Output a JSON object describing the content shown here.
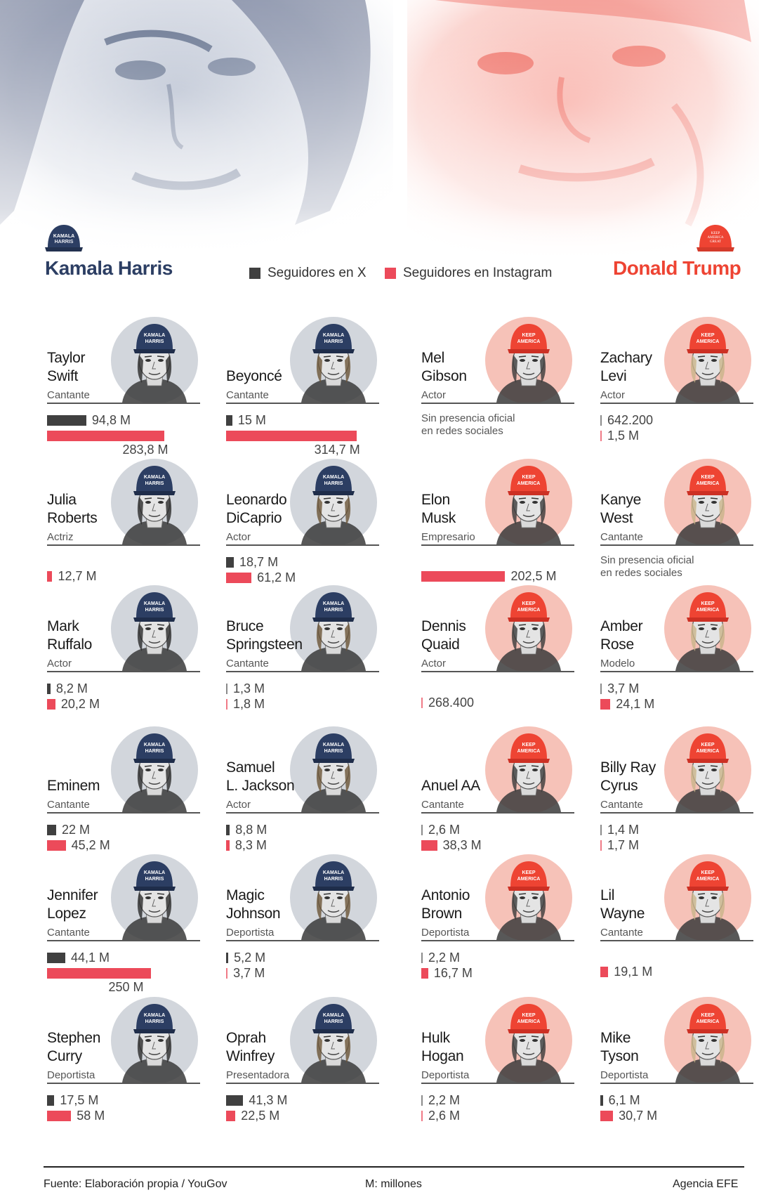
{
  "legend": {
    "x_label": "Seguidores en X",
    "ig_label": "Seguidores en Instagram"
  },
  "candidates": {
    "harris": {
      "name": "Kamala Harris",
      "color": "#2c3e63",
      "cap_text_1": "KAMALA",
      "cap_text_2": "HARRIS"
    },
    "trump": {
      "name": "Donald Trump",
      "color": "#ee4433",
      "cap_text_1": "KEEP",
      "cap_text_2": "AMERICA",
      "cap_text_3": "GREAT"
    }
  },
  "colors": {
    "x": "#404040",
    "instagram": "#ec4a5a",
    "harris_bg": "#d2d6dc",
    "trump_bg": "#f6c2b8"
  },
  "chart_data": {
    "type": "bar",
    "unit": "M: millones",
    "series_names": [
      "Seguidores en X",
      "Seguidores en Instagram"
    ],
    "people": [
      {
        "name": [
          "Taylor",
          "Swift"
        ],
        "role": "Cantante",
        "side": "harris",
        "x": 94.8,
        "x_label": "94,8 M",
        "ig": 283.8,
        "ig_label": "283,8 M"
      },
      {
        "name": [
          "Beyoncé"
        ],
        "role": "Cantante",
        "side": "harris",
        "x": 15,
        "x_label": "15 M",
        "ig": 314.7,
        "ig_label": "314,7 M"
      },
      {
        "name": [
          "Mel",
          "Gibson"
        ],
        "role": "Actor",
        "side": "trump",
        "note": [
          "Sin presencia oficial",
          "en redes sociales"
        ]
      },
      {
        "name": [
          "Zachary",
          "Levi"
        ],
        "role": "Actor",
        "side": "trump",
        "x": 0.6422,
        "x_label": "642.200",
        "ig": 1.5,
        "ig_label": "1,5 M"
      },
      {
        "name": [
          "Julia",
          "Roberts"
        ],
        "role": "Actriz",
        "side": "harris",
        "ig": 12.7,
        "ig_label": "12,7 M"
      },
      {
        "name": [
          "Leonardo",
          "DiCaprio"
        ],
        "role": "Actor",
        "side": "harris",
        "x": 18.7,
        "x_label": "18,7 M",
        "ig": 61.2,
        "ig_label": "61,2 M"
      },
      {
        "name": [
          "Elon",
          "Musk"
        ],
        "role": "Empresario",
        "side": "trump",
        "ig": 202.5,
        "ig_label": "202,5 M"
      },
      {
        "name": [
          "Kanye",
          "West"
        ],
        "role": "Cantante",
        "side": "trump",
        "note": [
          "Sin presencia oficial",
          "en redes sociales"
        ]
      },
      {
        "name": [
          "Mark",
          "Ruffalo"
        ],
        "role": "Actor",
        "side": "harris",
        "x": 8.2,
        "x_label": "8,2 M",
        "ig": 20.2,
        "ig_label": "20,2 M"
      },
      {
        "name": [
          "Bruce",
          "Springsteen"
        ],
        "role": "Cantante",
        "side": "harris",
        "x": 1.3,
        "x_label": "1,3 M",
        "ig": 1.8,
        "ig_label": "1,8 M"
      },
      {
        "name": [
          "Dennis",
          "Quaid"
        ],
        "role": "Actor",
        "side": "trump",
        "ig": 0.2684,
        "ig_label": "268.400"
      },
      {
        "name": [
          "Amber",
          "Rose"
        ],
        "role": "Modelo",
        "side": "trump",
        "x": 3.7,
        "x_label": "3,7 M",
        "ig": 24.1,
        "ig_label": "24,1 M"
      },
      {
        "name": [
          "Eminem"
        ],
        "role": "Cantante",
        "side": "harris",
        "x": 22,
        "x_label": "22 M",
        "ig": 45.2,
        "ig_label": "45,2 M"
      },
      {
        "name": [
          "Samuel",
          "L. Jackson"
        ],
        "role": "Actor",
        "side": "harris",
        "x": 8.8,
        "x_label": "8,8 M",
        "ig": 8.3,
        "ig_label": "8,3 M"
      },
      {
        "name": [
          "Anuel AA"
        ],
        "role": "Cantante",
        "side": "trump",
        "x": 2.6,
        "x_label": "2,6 M",
        "ig": 38.3,
        "ig_label": "38,3 M"
      },
      {
        "name": [
          "Billy Ray",
          "Cyrus"
        ],
        "role": "Cantante",
        "side": "trump",
        "x": 1.4,
        "x_label": "1,4 M",
        "ig": 1.7,
        "ig_label": "1,7 M"
      },
      {
        "name": [
          "Jennifer",
          "Lopez"
        ],
        "role": "Cantante",
        "side": "harris",
        "x": 44.1,
        "x_label": "44,1 M",
        "ig": 250,
        "ig_label": "250 M"
      },
      {
        "name": [
          "Magic",
          "Johnson"
        ],
        "role": "Deportista",
        "side": "harris",
        "x": 5.2,
        "x_label": "5,2 M",
        "ig": 3.7,
        "ig_label": "3,7 M"
      },
      {
        "name": [
          "Antonio",
          "Brown"
        ],
        "role": "Deportista",
        "side": "trump",
        "x": 2.2,
        "x_label": "2,2 M",
        "ig": 16.7,
        "ig_label": "16,7 M"
      },
      {
        "name": [
          "Lil",
          "Wayne"
        ],
        "role": "Cantante",
        "side": "trump",
        "ig": 19.1,
        "ig_label": "19,1 M"
      },
      {
        "name": [
          "Stephen",
          "Curry"
        ],
        "role": "Deportista",
        "side": "harris",
        "x": 17.5,
        "x_label": "17,5 M",
        "ig": 58,
        "ig_label": "58 M"
      },
      {
        "name": [
          "Oprah",
          "Winfrey"
        ],
        "role": "Presentadora",
        "side": "harris",
        "x": 41.3,
        "x_label": "41,3 M",
        "ig": 22.5,
        "ig_label": "22,5 M"
      },
      {
        "name": [
          "Hulk",
          "Hogan"
        ],
        "role": "Deportista",
        "side": "trump",
        "x": 2.2,
        "x_label": "2,2 M",
        "ig": 2.6,
        "ig_label": "2,6 M"
      },
      {
        "name": [
          "Mike",
          "Tyson"
        ],
        "role": "Deportista",
        "side": "trump",
        "x": 6.1,
        "x_label": "6,1 M",
        "ig": 30.7,
        "ig_label": "30,7 M"
      }
    ]
  },
  "footer": {
    "source": "Fuente: Elaboración propia / YouGov",
    "unit": "M: millones",
    "agency": "Agencia EFE"
  }
}
